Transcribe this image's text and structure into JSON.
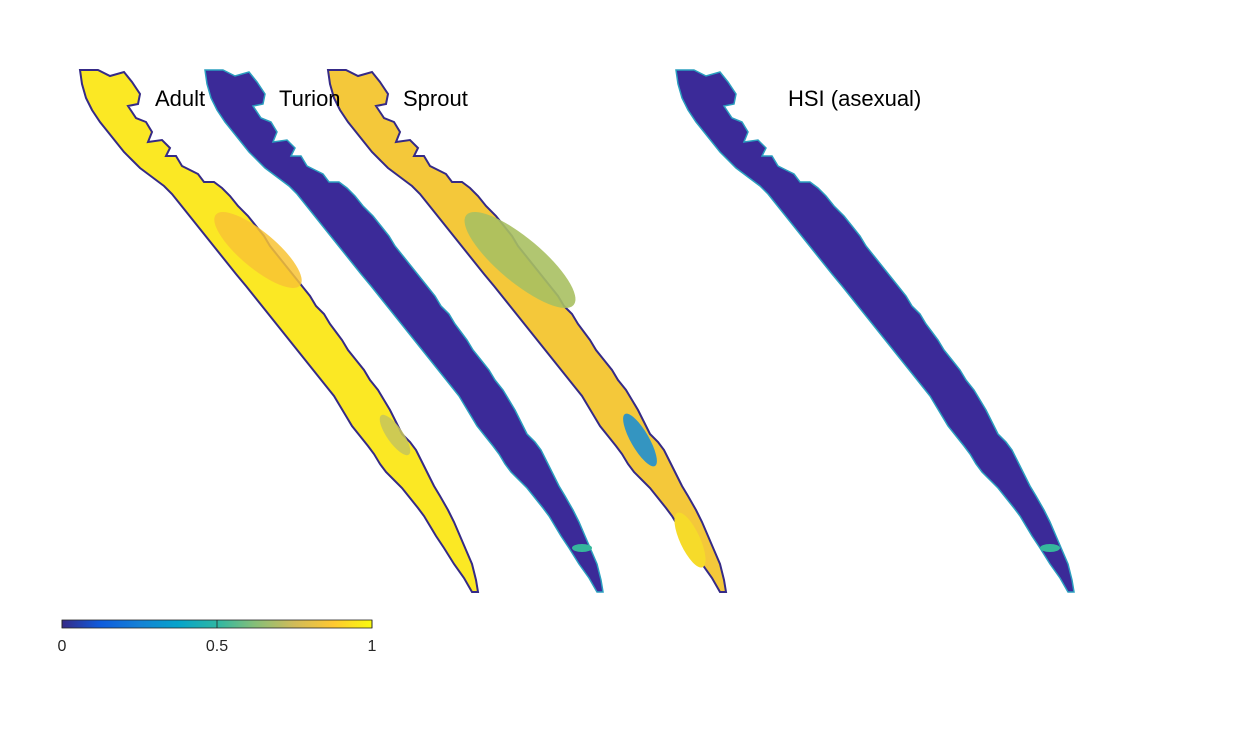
{
  "panels": [
    {
      "id": "adult",
      "title": "Adult",
      "mean_value": 0.88,
      "core_value": 0.8
    },
    {
      "id": "turion",
      "title": "Turion",
      "mean_value": 0.04,
      "core_value": 0.0
    },
    {
      "id": "sprout",
      "title": "Sprout",
      "mean_value": 0.75,
      "core_value": 0.62
    },
    {
      "id": "hsi",
      "title": "HSI (asexual)",
      "mean_value": 0.03,
      "core_value": 0.0
    }
  ],
  "colorbar": {
    "min": 0,
    "max": 1,
    "ticks": [
      {
        "value": 0,
        "label": "0"
      },
      {
        "value": 0.5,
        "label": "0.5"
      },
      {
        "value": 1,
        "label": "1"
      }
    ],
    "colormap": [
      "#352a87",
      "#0f5cdd",
      "#1481d6",
      "#06a4ca",
      "#2eb7a4",
      "#87bf77",
      "#d1bb59",
      "#fec832",
      "#f9fb0e"
    ]
  }
}
